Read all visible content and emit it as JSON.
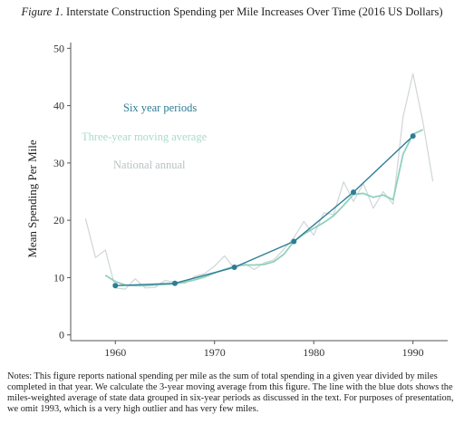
{
  "figure": {
    "label": "Figure 1.",
    "title": "Interstate Construction Spending per Mile Increases Over Time (2016 US Dollars)"
  },
  "notes": "Notes: This figure reports national spending per mile as the sum of total spending in a given year divided by miles completed in that year.  We calculate the 3-year moving average from this figure.  The line with the blue dots shows the miles-weighted average of state data grouped in six-year periods as discussed in the text.  For purposes of presentation, we omit 1993, which is a very high outlier and has very few miles.",
  "chart_data": {
    "type": "line",
    "title": "Interstate Construction Spending per Mile Increases Over Time (2016 US Dollars)",
    "xlabel": "",
    "ylabel": "Mean Spending Per Mile",
    "xlim": [
      1955.5,
      1993.5
    ],
    "ylim": [
      -1,
      51
    ],
    "xticks": [
      1960,
      1970,
      1980,
      1990
    ],
    "yticks": [
      0,
      10,
      20,
      30,
      40,
      50
    ],
    "grid": false,
    "legend": "inline text, upper-left",
    "series": [
      {
        "name": "Six year periods",
        "color": "#2e7d96",
        "markers": true,
        "x": [
          1960,
          1966,
          1972,
          1978,
          1984,
          1990
        ],
        "y": [
          8.6,
          9.0,
          11.8,
          16.3,
          24.9,
          34.7
        ]
      },
      {
        "name": "Three-year moving average",
        "color": "#8fd1bd",
        "markers": false,
        "x": [
          1959,
          1960,
          1961,
          1962,
          1963,
          1964,
          1965,
          1966,
          1967,
          1968,
          1969,
          1970,
          1971,
          1972,
          1973,
          1974,
          1975,
          1976,
          1977,
          1978,
          1979,
          1980,
          1981,
          1982,
          1983,
          1984,
          1985,
          1986,
          1987,
          1988,
          1989,
          1990,
          1991
        ],
        "y": [
          10.4,
          9.3,
          8.7,
          8.6,
          8.6,
          8.7,
          8.8,
          8.9,
          9.2,
          9.6,
          10.1,
          10.8,
          11.4,
          12.0,
          12.2,
          12.2,
          12.3,
          12.8,
          14.1,
          16.3,
          17.6,
          18.6,
          19.6,
          20.8,
          22.6,
          24.5,
          24.7,
          24.0,
          24.4,
          23.6,
          31.5,
          35.0,
          35.8
        ]
      },
      {
        "name": "National annual",
        "color": "#cfd6d8",
        "markers": false,
        "x": [
          1957,
          1958,
          1959,
          1960,
          1961,
          1962,
          1963,
          1964,
          1965,
          1966,
          1967,
          1968,
          1969,
          1970,
          1971,
          1972,
          1973,
          1974,
          1975,
          1976,
          1977,
          1978,
          1979,
          1980,
          1981,
          1982,
          1983,
          1984,
          1985,
          1986,
          1987,
          1988,
          1989,
          1990,
          1991,
          1992
        ],
        "y": [
          20.3,
          13.5,
          14.8,
          8.2,
          8.0,
          9.8,
          8.2,
          8.3,
          9.5,
          9.2,
          9.0,
          10.2,
          10.7,
          12.0,
          13.8,
          11.6,
          12.5,
          11.4,
          12.6,
          13.1,
          15.0,
          17.0,
          19.8,
          17.4,
          21.3,
          21.0,
          26.7,
          23.3,
          26.4,
          22.1,
          25.0,
          22.8,
          38.0,
          45.6,
          37.2,
          26.8
        ]
      }
    ]
  }
}
